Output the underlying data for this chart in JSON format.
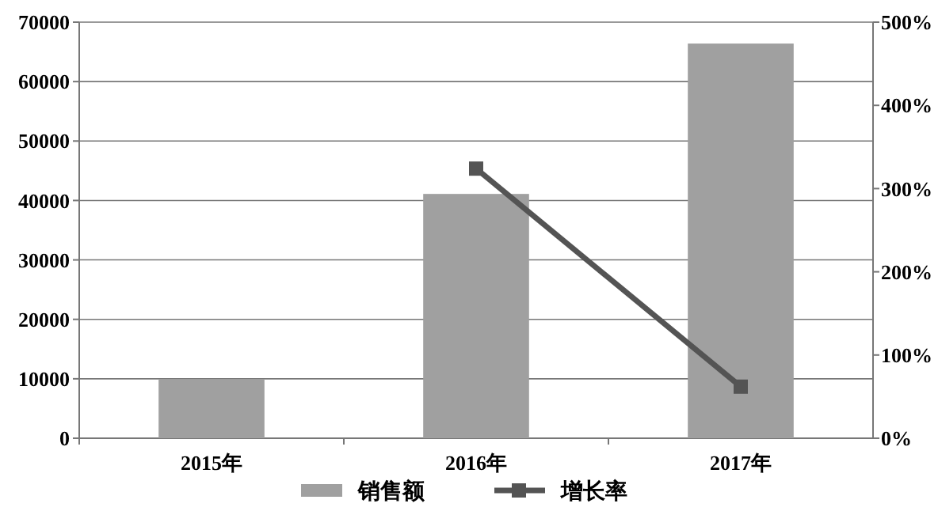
{
  "chart_data": {
    "type": "bar",
    "categories": [
      "2015年",
      "2016年",
      "2017年"
    ],
    "series": [
      {
        "name": "销售额",
        "color": "#a0a0a0",
        "values": [
          9900,
          41100,
          66400
        ]
      },
      {
        "name": "增长率",
        "type": "line",
        "axis": "y2",
        "color": "#545454",
        "values": [
          null,
          324,
          62
        ]
      }
    ],
    "ylim": [
      0,
      70000
    ],
    "yticks": [
      0,
      10000,
      20000,
      30000,
      40000,
      50000,
      60000,
      70000
    ],
    "y2lim": [
      0,
      500
    ],
    "y2ticks": [
      {
        "value": 0,
        "label": "0%"
      },
      {
        "value": 100,
        "label": "100%"
      },
      {
        "value": 200,
        "label": "200%"
      },
      {
        "value": 300,
        "label": "300%"
      },
      {
        "value": 400,
        "label": "400%"
      },
      {
        "value": 500,
        "label": "500%"
      }
    ],
    "grid": "y",
    "legend": "bottom",
    "marker": "square"
  }
}
